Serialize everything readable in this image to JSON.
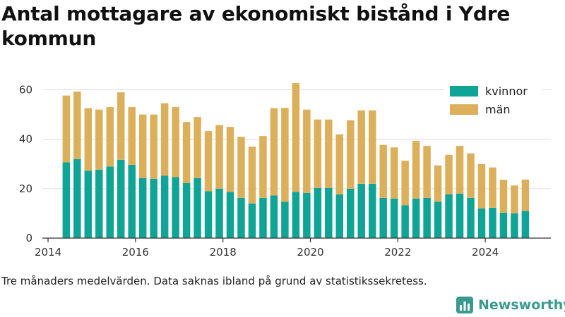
{
  "title": "Antal mottagare av ekonomiskt bistånd i Ydre kommun",
  "footnote": "Tre månaders medelvärden. Data saknas ibland på grund av statistikssekretess.",
  "brand": {
    "name": "Newsworthy",
    "logo_icon": "bar-chart-logo-icon"
  },
  "colors": {
    "kvinnor": "#10a497",
    "man": "#dcb05a",
    "grid": "#dddddd",
    "axis": "#333333"
  },
  "chart_data": {
    "type": "bar",
    "stacked": true,
    "title": "Antal mottagare av ekonomiskt bistånd i Ydre kommun",
    "xlabel": "",
    "ylabel": "",
    "xlim": [
      2013.87,
      2025.5
    ],
    "ylim": [
      0,
      65
    ],
    "x_ticks": [
      2014,
      2016,
      2018,
      2020,
      2022,
      2024
    ],
    "y_ticks": [
      0,
      20,
      40,
      60
    ],
    "grid": true,
    "legend_position": "top-right",
    "x": [
      "2014-06",
      "2014-09",
      "2014-12",
      "2015-03",
      "2015-06",
      "2015-09",
      "2015-12",
      "2016-03",
      "2016-06",
      "2016-09",
      "2016-12",
      "2017-03",
      "2017-06",
      "2017-09",
      "2017-12",
      "2018-03",
      "2018-06",
      "2018-09",
      "2018-12",
      "2019-03",
      "2019-06",
      "2019-09",
      "2019-12",
      "2020-03",
      "2020-06",
      "2020-09",
      "2020-12",
      "2021-03",
      "2021-06",
      "2021-09",
      "2021-12",
      "2022-03",
      "2022-06",
      "2022-09",
      "2022-12",
      "2023-03",
      "2023-06",
      "2023-09",
      "2023-12",
      "2024-03",
      "2024-06",
      "2024-09",
      "2024-12"
    ],
    "series": [
      {
        "name": "kvinnor",
        "values": [
          30.7,
          32,
          27.3,
          27.7,
          29,
          31.7,
          29.7,
          24.3,
          24,
          25.3,
          24.7,
          22.3,
          24.3,
          19,
          20,
          18.7,
          16.3,
          14,
          16.3,
          17.3,
          14.7,
          18.7,
          18.3,
          20.3,
          20.3,
          17.7,
          20,
          22,
          22,
          16.3,
          16,
          13.3,
          16,
          16.3,
          14.7,
          17.7,
          18,
          16.3,
          12,
          12.3,
          10.3,
          10,
          11
        ]
      },
      {
        "name": "män",
        "values": [
          27,
          27.3,
          25.3,
          24.3,
          24,
          27.3,
          23.3,
          25.7,
          26,
          29.3,
          28.3,
          24.7,
          24.7,
          24.3,
          25.7,
          26.3,
          24.7,
          23,
          25,
          35.3,
          38,
          44,
          33.7,
          27.7,
          27.7,
          24.3,
          27.7,
          29.7,
          29.7,
          21.4,
          20.7,
          18,
          23.3,
          21,
          14.7,
          16,
          19.3,
          18,
          18,
          16.3,
          13.3,
          11.3,
          12.7
        ]
      }
    ]
  }
}
